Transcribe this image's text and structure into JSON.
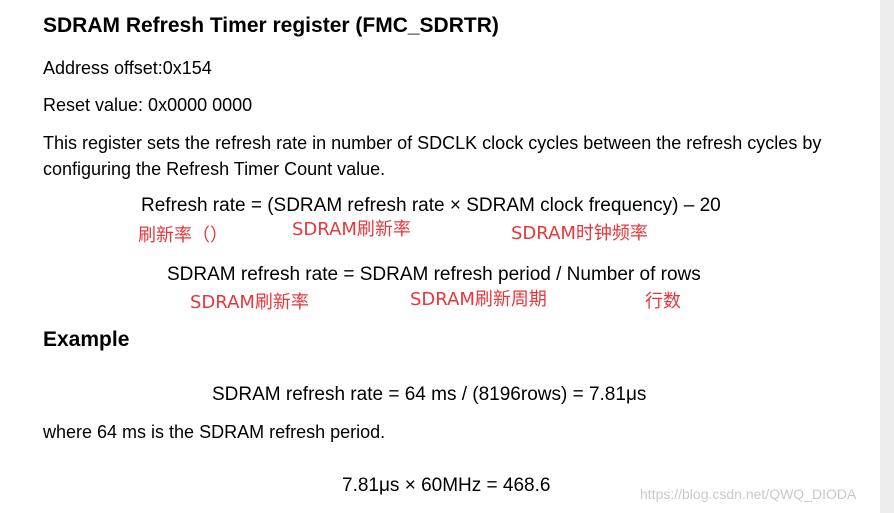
{
  "heading": "SDRAM Refresh Timer register (FMC_SDRTR)",
  "address_offset": "Address offset:0x154",
  "reset_value": "Reset value: 0x0000 0000",
  "description": "This register sets the refresh rate in number of SDCLK clock cycles between the refresh cycles by configuring the Refresh Timer Count value.",
  "formula1": {
    "text": "Refresh rate  =  (SDRAM refresh rate × SDRAM clock frequency) – 20",
    "notes": [
      "刷新率（）",
      "SDRAM刷新率",
      "SDRAM时钟频率"
    ]
  },
  "formula2": {
    "text": "SDRAM refresh rate  =  SDRAM refresh period / Number of rows",
    "notes": [
      "SDRAM刷新率",
      "SDRAM刷新周期",
      "行数"
    ]
  },
  "example_heading": "Example",
  "example_formula": "SDRAM refresh rate  =  64 ms / (8196rows)  =  7.81μs",
  "example_note": "where 64 ms is the SDRAM refresh period.",
  "final_formula": "7.81μs × 60MHz  =  468.6",
  "watermark": "https://blog.csdn.net/QWQ_DIODA"
}
